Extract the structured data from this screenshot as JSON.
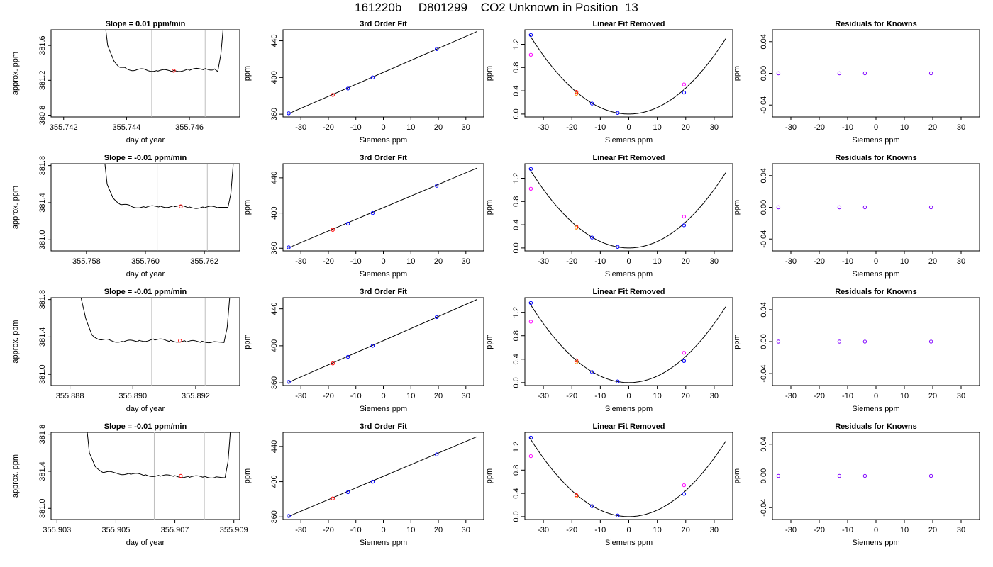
{
  "page_title": "161220b     D801299    CO2 Unknown in Position  13",
  "colors": {
    "axis": "#000000",
    "grid_line": "#bebebe",
    "known": "#0000ff",
    "unknown": "#ff0000",
    "unknown_alt": "#ff00ff",
    "unknown_orange": "#ff8c00",
    "curve": "#000000"
  },
  "chart_data": [
    {
      "type": "line",
      "title": "Slope =  0.01  ppm/min",
      "xlabel": "day of year",
      "ylabel": "approx. ppm",
      "xlim": [
        355.7416,
        355.7476
      ],
      "ylim": [
        380.78,
        381.78
      ],
      "xticks": [
        355.742,
        355.744,
        355.746
      ],
      "xtick_labels": [
        "355.742",
        "355.744",
        "355.746"
      ],
      "yticks": [
        380.8,
        381.2,
        381.6
      ],
      "ytick_labels": [
        "380.8",
        "381.2",
        "381.6"
      ],
      "vlines": [
        355.7448,
        355.7465
      ],
      "marker": {
        "x": 355.7455,
        "y": 381.31
      },
      "series": [
        {
          "x": [
            355.7433,
            355.7434,
            355.7436,
            355.7438,
            355.744,
            355.7443,
            355.7446,
            355.745,
            355.7455,
            355.746,
            355.7465,
            355.7468,
            355.7469,
            355.747,
            355.7471
          ],
          "y": [
            381.9,
            381.6,
            381.42,
            381.35,
            381.33,
            381.32,
            381.32,
            381.31,
            381.31,
            381.32,
            381.33,
            381.33,
            381.3,
            381.5,
            381.9
          ]
        }
      ]
    },
    {
      "type": "scatter",
      "title": "3rd Order Fit",
      "xlabel": "Siemens ppm",
      "ylabel": "ppm",
      "xlim": [
        -36.5,
        36.5
      ],
      "ylim": [
        357,
        452
      ],
      "xticks": [
        -30,
        -20,
        -10,
        0,
        10,
        20,
        30
      ],
      "xtick_labels": [
        "-30",
        "-20",
        "-10",
        "0",
        "10",
        "20",
        "30"
      ],
      "yticks": [
        360,
        400,
        440
      ],
      "ytick_labels": [
        "360",
        "400",
        "440"
      ],
      "fit_line": {
        "x": [
          -34.5,
          34
        ],
        "y": [
          360.5,
          450
        ]
      },
      "known": {
        "x": [
          -34.4,
          -12.9,
          -3.9,
          19.4
        ],
        "y": [
          361,
          388,
          400,
          431
        ]
      },
      "unknown": {
        "x": [
          -18.4
        ],
        "y": [
          381
        ]
      }
    },
    {
      "type": "scatter",
      "title": "Linear Fit Removed",
      "xlabel": "Siemens ppm",
      "ylabel": "ppm",
      "xlim": [
        -36.5,
        36.5
      ],
      "ylim": [
        -0.05,
        1.45
      ],
      "xticks": [
        -30,
        -20,
        -10,
        0,
        10,
        20,
        30
      ],
      "xtick_labels": [
        "-30",
        "-20",
        "-10",
        "0",
        "10",
        "20",
        "30"
      ],
      "yticks": [
        0,
        0.4,
        0.8,
        1.2
      ],
      "ytick_labels": [
        "0.0",
        "0.4",
        "0.8",
        "1.2"
      ],
      "curve_coef": 0.00112,
      "known": {
        "x": [
          -34.4,
          -12.9,
          -3.9,
          19.4
        ],
        "y": [
          1.36,
          0.18,
          0.02,
          0.37
        ]
      },
      "unknown": {
        "x": [
          -18.4
        ],
        "y": [
          0.38
        ]
      },
      "unknown_orange": {
        "x": [
          -18.4
        ],
        "y": [
          0.35
        ]
      },
      "unknown_alt": {
        "x": [
          -34.4,
          19.4
        ],
        "y": [
          1.02,
          0.51
        ]
      }
    },
    {
      "type": "scatter",
      "title": "Residuals for Knowns",
      "xlabel": "Siemens ppm",
      "ylabel": "ppm",
      "xlim": [
        -36.5,
        36.5
      ],
      "ylim": [
        -0.055,
        0.055
      ],
      "xticks": [
        -30,
        -20,
        -10,
        0,
        10,
        20,
        30
      ],
      "xtick_labels": [
        "-30",
        "-20",
        "-10",
        "0",
        "10",
        "20",
        "30"
      ],
      "yticks": [
        -0.04,
        0,
        0.04
      ],
      "ytick_labels": [
        "-0.04",
        "0.00",
        "0.04"
      ],
      "known": {
        "x": [
          -34.4,
          -12.9,
          -3.9,
          19.4
        ],
        "y": [
          0,
          0,
          0,
          0
        ]
      }
    },
    {
      "type": "line",
      "title": "Slope =  -0.01  ppm/min",
      "xlabel": "day of year",
      "ylabel": "approx. ppm",
      "xlim": [
        355.7568,
        355.7632
      ],
      "ylim": [
        380.88,
        381.82
      ],
      "xticks": [
        355.758,
        355.76,
        355.762
      ],
      "xtick_labels": [
        "355.758",
        "355.760",
        "355.762"
      ],
      "yticks": [
        381.0,
        381.4,
        381.8
      ],
      "ytick_labels": [
        "381.0",
        "381.4",
        "381.8"
      ],
      "vlines": [
        355.7604,
        355.7621
      ],
      "marker": {
        "x": 355.7612,
        "y": 381.36
      },
      "series": [
        {
          "x": [
            355.7586,
            355.7587,
            355.7589,
            355.7592,
            355.7595,
            355.76,
            355.7605,
            355.761,
            355.7615,
            355.762,
            355.7625,
            355.7628,
            355.7629,
            355.763
          ],
          "y": [
            381.9,
            381.6,
            381.45,
            381.38,
            381.36,
            381.35,
            381.36,
            381.36,
            381.35,
            381.35,
            381.35,
            381.35,
            381.5,
            381.9
          ]
        }
      ]
    },
    {
      "type": "scatter",
      "title": "3rd Order Fit",
      "xlabel": "Siemens ppm",
      "ylabel": "ppm",
      "xlim": [
        -36.5,
        36.5
      ],
      "ylim": [
        357,
        456
      ],
      "xticks": [
        -30,
        -20,
        -10,
        0,
        10,
        20,
        30
      ],
      "xtick_labels": [
        "-30",
        "-20",
        "-10",
        "0",
        "10",
        "20",
        "30"
      ],
      "yticks": [
        360,
        400,
        440
      ],
      "ytick_labels": [
        "360",
        "400",
        "440"
      ],
      "fit_line": {
        "x": [
          -34.5,
          34
        ],
        "y": [
          360.5,
          451
        ]
      },
      "known": {
        "x": [
          -34.4,
          -12.9,
          -3.9,
          19.4
        ],
        "y": [
          361,
          388,
          400,
          431
        ]
      },
      "unknown": {
        "x": [
          -18.4
        ],
        "y": [
          381
        ]
      }
    },
    {
      "type": "scatter",
      "title": "Linear Fit Removed",
      "xlabel": "Siemens ppm",
      "ylabel": "ppm",
      "xlim": [
        -36.5,
        36.5
      ],
      "ylim": [
        -0.05,
        1.45
      ],
      "xticks": [
        -30,
        -20,
        -10,
        0,
        10,
        20,
        30
      ],
      "xtick_labels": [
        "-30",
        "-20",
        "-10",
        "0",
        "10",
        "20",
        "30"
      ],
      "yticks": [
        0,
        0.4,
        0.8,
        1.2
      ],
      "ytick_labels": [
        "0.0",
        "0.4",
        "0.8",
        "1.2"
      ],
      "curve_coef": 0.00112,
      "known": {
        "x": [
          -34.4,
          -12.9,
          -3.9,
          19.4
        ],
        "y": [
          1.36,
          0.18,
          0.02,
          0.39
        ]
      },
      "unknown": {
        "x": [
          -18.4
        ],
        "y": [
          0.37
        ]
      },
      "unknown_orange": {
        "x": [
          -18.4
        ],
        "y": [
          0.35
        ]
      },
      "unknown_alt": {
        "x": [
          -34.4,
          19.4
        ],
        "y": [
          1.02,
          0.54
        ]
      }
    },
    {
      "type": "scatter",
      "title": "Residuals for Knowns",
      "xlabel": "Siemens ppm",
      "ylabel": "ppm",
      "xlim": [
        -36.5,
        36.5
      ],
      "ylim": [
        -0.055,
        0.055
      ],
      "xticks": [
        -30,
        -20,
        -10,
        0,
        10,
        20,
        30
      ],
      "xtick_labels": [
        "-30",
        "-20",
        "-10",
        "0",
        "10",
        "20",
        "30"
      ],
      "yticks": [
        -0.04,
        0,
        0.04
      ],
      "ytick_labels": [
        "-0.04",
        "0.00",
        "0.04"
      ],
      "known": {
        "x": [
          -34.4,
          -12.9,
          -3.9,
          19.4
        ],
        "y": [
          0,
          0,
          0,
          0
        ]
      }
    },
    {
      "type": "line",
      "title": "Slope =  -0.01  ppm/min",
      "xlabel": "day of year",
      "ylabel": "approx. ppm",
      "xlim": [
        355.8874,
        355.8934
      ],
      "ylim": [
        380.88,
        381.82
      ],
      "xticks": [
        355.888,
        355.89,
        355.892
      ],
      "xtick_labels": [
        "355.888",
        "355.890",
        "355.892"
      ],
      "yticks": [
        381.0,
        381.4,
        381.8
      ],
      "ytick_labels": [
        "381.0",
        "381.4",
        "381.8"
      ],
      "vlines": [
        355.8906,
        355.8923
      ],
      "marker": {
        "x": 355.8915,
        "y": 381.36
      },
      "series": [
        {
          "x": [
            355.8883,
            355.8885,
            355.8887,
            355.889,
            355.8893,
            355.8897,
            355.8902,
            355.8907,
            355.8912,
            355.8917,
            355.8922,
            355.8926,
            355.8929,
            355.893,
            355.8931
          ],
          "y": [
            381.9,
            381.6,
            381.42,
            381.37,
            381.36,
            381.35,
            381.36,
            381.37,
            381.36,
            381.35,
            381.35,
            381.35,
            381.34,
            381.5,
            381.9
          ]
        }
      ]
    },
    {
      "type": "scatter",
      "title": "3rd Order Fit",
      "xlabel": "Siemens ppm",
      "ylabel": "ppm",
      "xlim": [
        -36.5,
        36.5
      ],
      "ylim": [
        357,
        452
      ],
      "xticks": [
        -30,
        -20,
        -10,
        0,
        10,
        20,
        30
      ],
      "xtick_labels": [
        "-30",
        "-20",
        "-10",
        "0",
        "10",
        "20",
        "30"
      ],
      "yticks": [
        360,
        400,
        440
      ],
      "ytick_labels": [
        "360",
        "400",
        "440"
      ],
      "fit_line": {
        "x": [
          -34.5,
          34
        ],
        "y": [
          360.5,
          450
        ]
      },
      "known": {
        "x": [
          -34.4,
          -12.9,
          -3.9,
          19.4
        ],
        "y": [
          361,
          388,
          400,
          431
        ]
      },
      "unknown": {
        "x": [
          -18.4
        ],
        "y": [
          381
        ]
      }
    },
    {
      "type": "scatter",
      "title": "Linear Fit Removed",
      "xlabel": "Siemens ppm",
      "ylabel": "ppm",
      "xlim": [
        -36.5,
        36.5
      ],
      "ylim": [
        -0.05,
        1.45
      ],
      "xticks": [
        -30,
        -20,
        -10,
        0,
        10,
        20,
        30
      ],
      "xtick_labels": [
        "-30",
        "-20",
        "-10",
        "0",
        "10",
        "20",
        "30"
      ],
      "yticks": [
        0,
        0.4,
        0.8,
        1.2
      ],
      "ytick_labels": [
        "0.0",
        "0.4",
        "0.8",
        "1.2"
      ],
      "curve_coef": 0.00112,
      "known": {
        "x": [
          -34.4,
          -12.9,
          -3.9,
          19.4
        ],
        "y": [
          1.36,
          0.18,
          0.02,
          0.37
        ]
      },
      "unknown": {
        "x": [
          -18.4
        ],
        "y": [
          0.38
        ]
      },
      "unknown_orange": {
        "x": [
          -18.4
        ],
        "y": [
          0.35
        ]
      },
      "unknown_alt": {
        "x": [
          -34.4,
          19.4
        ],
        "y": [
          1.04,
          0.51
        ]
      }
    },
    {
      "type": "scatter",
      "title": "Residuals for Knowns",
      "xlabel": "Siemens ppm",
      "ylabel": "ppm",
      "xlim": [
        -36.5,
        36.5
      ],
      "ylim": [
        -0.055,
        0.055
      ],
      "xticks": [
        -30,
        -20,
        -10,
        0,
        10,
        20,
        30
      ],
      "xtick_labels": [
        "-30",
        "-20",
        "-10",
        "0",
        "10",
        "20",
        "30"
      ],
      "yticks": [
        -0.04,
        0,
        0.04
      ],
      "ytick_labels": [
        "-0.04",
        "0.00",
        "0.04"
      ],
      "known": {
        "x": [
          -34.4,
          -12.9,
          -3.9,
          19.4
        ],
        "y": [
          0,
          0,
          0,
          0
        ]
      }
    },
    {
      "type": "line",
      "title": "Slope =  -0.01  ppm/min",
      "xlabel": "day of year",
      "ylabel": "approx. ppm",
      "xlim": [
        355.9028,
        355.9092
      ],
      "ylim": [
        380.88,
        381.82
      ],
      "xticks": [
        355.903,
        355.905,
        355.907,
        355.909
      ],
      "xtick_labels": [
        "355.903",
        "355.905",
        "355.907",
        "355.909"
      ],
      "yticks": [
        381.0,
        381.4,
        381.8
      ],
      "ytick_labels": [
        "381.0",
        "381.4",
        "381.8"
      ],
      "vlines": [
        355.9063,
        355.908
      ],
      "marker": {
        "x": 355.9072,
        "y": 381.35
      },
      "series": [
        {
          "x": [
            355.904,
            355.9041,
            355.9043,
            355.9046,
            355.905,
            355.9055,
            355.906,
            355.9065,
            355.907,
            355.9075,
            355.908,
            355.9084,
            355.9087,
            355.9088,
            355.9089
          ],
          "y": [
            381.9,
            381.6,
            381.45,
            381.39,
            381.38,
            381.37,
            381.36,
            381.35,
            381.35,
            381.34,
            381.34,
            381.34,
            381.33,
            381.5,
            381.9
          ]
        }
      ]
    },
    {
      "type": "scatter",
      "title": "3rd Order Fit",
      "xlabel": "Siemens ppm",
      "ylabel": "ppm",
      "xlim": [
        -36.5,
        36.5
      ],
      "ylim": [
        357,
        456
      ],
      "xticks": [
        -30,
        -20,
        -10,
        0,
        10,
        20,
        30
      ],
      "xtick_labels": [
        "-30",
        "-20",
        "-10",
        "0",
        "10",
        "20",
        "30"
      ],
      "yticks": [
        360,
        400,
        440
      ],
      "ytick_labels": [
        "360",
        "400",
        "440"
      ],
      "fit_line": {
        "x": [
          -34.5,
          34
        ],
        "y": [
          360.5,
          451
        ]
      },
      "known": {
        "x": [
          -34.4,
          -12.9,
          -3.9,
          19.4
        ],
        "y": [
          361,
          388,
          400,
          431
        ]
      },
      "unknown": {
        "x": [
          -18.4
        ],
        "y": [
          381
        ]
      }
    },
    {
      "type": "scatter",
      "title": "Linear Fit Removed",
      "xlabel": "Siemens ppm",
      "ylabel": "ppm",
      "xlim": [
        -36.5,
        36.5
      ],
      "ylim": [
        -0.05,
        1.45
      ],
      "xticks": [
        -30,
        -20,
        -10,
        0,
        10,
        20,
        30
      ],
      "xtick_labels": [
        "-30",
        "-20",
        "-10",
        "0",
        "10",
        "20",
        "30"
      ],
      "yticks": [
        0,
        0.4,
        0.8,
        1.2
      ],
      "ytick_labels": [
        "0.0",
        "0.4",
        "0.8",
        "1.2"
      ],
      "curve_coef": 0.00112,
      "known": {
        "x": [
          -34.4,
          -12.9,
          -3.9,
          19.4
        ],
        "y": [
          1.36,
          0.18,
          0.02,
          0.39
        ]
      },
      "unknown": {
        "x": [
          -18.4
        ],
        "y": [
          0.37
        ]
      },
      "unknown_orange": {
        "x": [
          -18.4
        ],
        "y": [
          0.35
        ]
      },
      "unknown_alt": {
        "x": [
          -34.4,
          19.4
        ],
        "y": [
          1.04,
          0.54
        ]
      }
    },
    {
      "type": "scatter",
      "title": "Residuals for Knowns",
      "xlabel": "Siemens ppm",
      "ylabel": "ppm",
      "xlim": [
        -36.5,
        36.5
      ],
      "ylim": [
        -0.055,
        0.055
      ],
      "xticks": [
        -30,
        -20,
        -10,
        0,
        10,
        20,
        30
      ],
      "xtick_labels": [
        "-30",
        "-20",
        "-10",
        "0",
        "10",
        "20",
        "30"
      ],
      "yticks": [
        -0.04,
        0,
        0.04
      ],
      "ytick_labels": [
        "-0.04",
        "0.00",
        "0.04"
      ],
      "known": {
        "x": [
          -34.4,
          -12.9,
          -3.9,
          19.4
        ],
        "y": [
          0,
          0,
          0,
          0
        ]
      }
    }
  ]
}
